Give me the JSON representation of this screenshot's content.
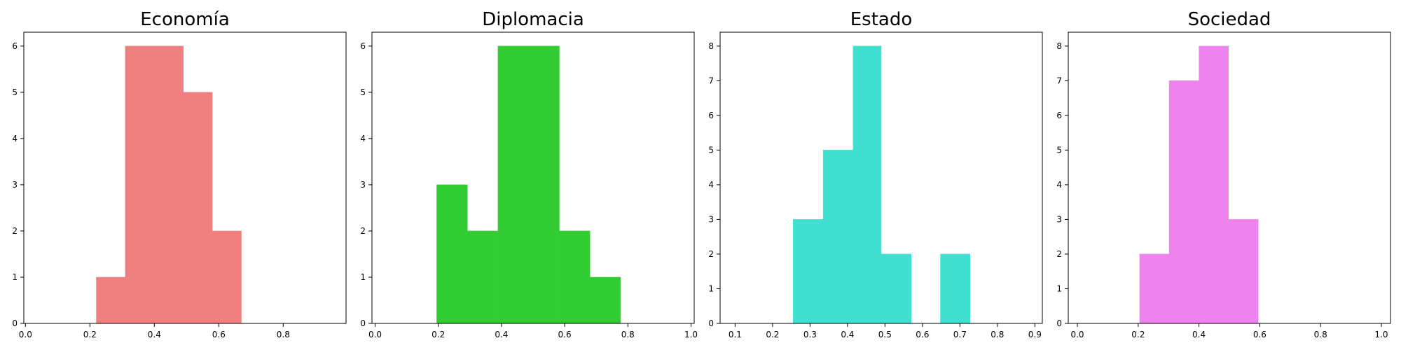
{
  "chart_data": [
    {
      "type": "histogram",
      "title": "Economía",
      "color": "#F08080",
      "xlim": [
        -0.005,
        0.995
      ],
      "ylim": [
        0,
        6.3
      ],
      "xticks": [
        0.0,
        0.2,
        0.4,
        0.6,
        0.8
      ],
      "xtick_labels": [
        "0.0",
        "0.2",
        "0.4",
        "0.6",
        "0.8"
      ],
      "yticks": [
        0,
        1,
        2,
        3,
        4,
        5,
        6
      ],
      "ytick_labels": [
        "0",
        "1",
        "2",
        "3",
        "4",
        "5",
        "6"
      ],
      "bins": [
        {
          "x0": 0.22,
          "x1": 0.31,
          "count": 1
        },
        {
          "x0": 0.31,
          "x1": 0.4,
          "count": 6
        },
        {
          "x0": 0.4,
          "x1": 0.49,
          "count": 6
        },
        {
          "x0": 0.49,
          "x1": 0.58,
          "count": 5
        },
        {
          "x0": 0.58,
          "x1": 0.67,
          "count": 2
        }
      ]
    },
    {
      "type": "histogram",
      "title": "Diplomacia",
      "color": "#32CD32",
      "xlim": [
        -0.01,
        1.01
      ],
      "ylim": [
        0,
        6.3
      ],
      "xticks": [
        0.0,
        0.2,
        0.4,
        0.6,
        0.8,
        1.0
      ],
      "xtick_labels": [
        "0.0",
        "0.2",
        "0.4",
        "0.6",
        "0.8",
        "1.0"
      ],
      "yticks": [
        0,
        1,
        2,
        3,
        4,
        5,
        6
      ],
      "ytick_labels": [
        "0",
        "1",
        "2",
        "3",
        "4",
        "5",
        "6"
      ],
      "bins": [
        {
          "x0": 0.195,
          "x1": 0.292,
          "count": 3
        },
        {
          "x0": 0.292,
          "x1": 0.389,
          "count": 2
        },
        {
          "x0": 0.389,
          "x1": 0.486,
          "count": 6
        },
        {
          "x0": 0.486,
          "x1": 0.583,
          "count": 6
        },
        {
          "x0": 0.583,
          "x1": 0.68,
          "count": 2
        },
        {
          "x0": 0.68,
          "x1": 0.777,
          "count": 1
        }
      ]
    },
    {
      "type": "histogram",
      "title": "Estado",
      "color": "#40E0D0",
      "xlim": [
        0.06,
        0.92
      ],
      "ylim": [
        0,
        8.4
      ],
      "xticks": [
        0.1,
        0.2,
        0.3,
        0.4,
        0.5,
        0.6,
        0.7,
        0.8,
        0.9
      ],
      "xtick_labels": [
        "0.1",
        "0.2",
        "0.3",
        "0.4",
        "0.5",
        "0.6",
        "0.7",
        "0.8",
        "0.9"
      ],
      "yticks": [
        0,
        1,
        2,
        3,
        4,
        5,
        6,
        7,
        8
      ],
      "ytick_labels": [
        "0",
        "1",
        "2",
        "3",
        "4",
        "5",
        "6",
        "7",
        "8"
      ],
      "bins": [
        {
          "x0": 0.255,
          "x1": 0.335,
          "count": 3
        },
        {
          "x0": 0.335,
          "x1": 0.415,
          "count": 5
        },
        {
          "x0": 0.415,
          "x1": 0.49,
          "count": 8
        },
        {
          "x0": 0.49,
          "x1": 0.57,
          "count": 2
        },
        {
          "x0": 0.57,
          "x1": 0.648,
          "count": 0
        },
        {
          "x0": 0.648,
          "x1": 0.727,
          "count": 2
        }
      ]
    },
    {
      "type": "histogram",
      "title": "Sociedad",
      "color": "#EE82EE",
      "xlim": [
        -0.03,
        1.03
      ],
      "ylim": [
        0,
        8.4
      ],
      "xticks": [
        0.0,
        0.2,
        0.4,
        0.6,
        0.8,
        1.0
      ],
      "xtick_labels": [
        "0.0",
        "0.2",
        "0.4",
        "0.6",
        "0.8",
        "1.0"
      ],
      "yticks": [
        0,
        1,
        2,
        3,
        4,
        5,
        6,
        7,
        8
      ],
      "ytick_labels": [
        "0",
        "1",
        "2",
        "3",
        "4",
        "5",
        "6",
        "7",
        "8"
      ],
      "bins": [
        {
          "x0": 0.205,
          "x1": 0.302,
          "count": 2
        },
        {
          "x0": 0.302,
          "x1": 0.4,
          "count": 7
        },
        {
          "x0": 0.4,
          "x1": 0.497,
          "count": 8
        },
        {
          "x0": 0.497,
          "x1": 0.595,
          "count": 3
        }
      ]
    }
  ]
}
